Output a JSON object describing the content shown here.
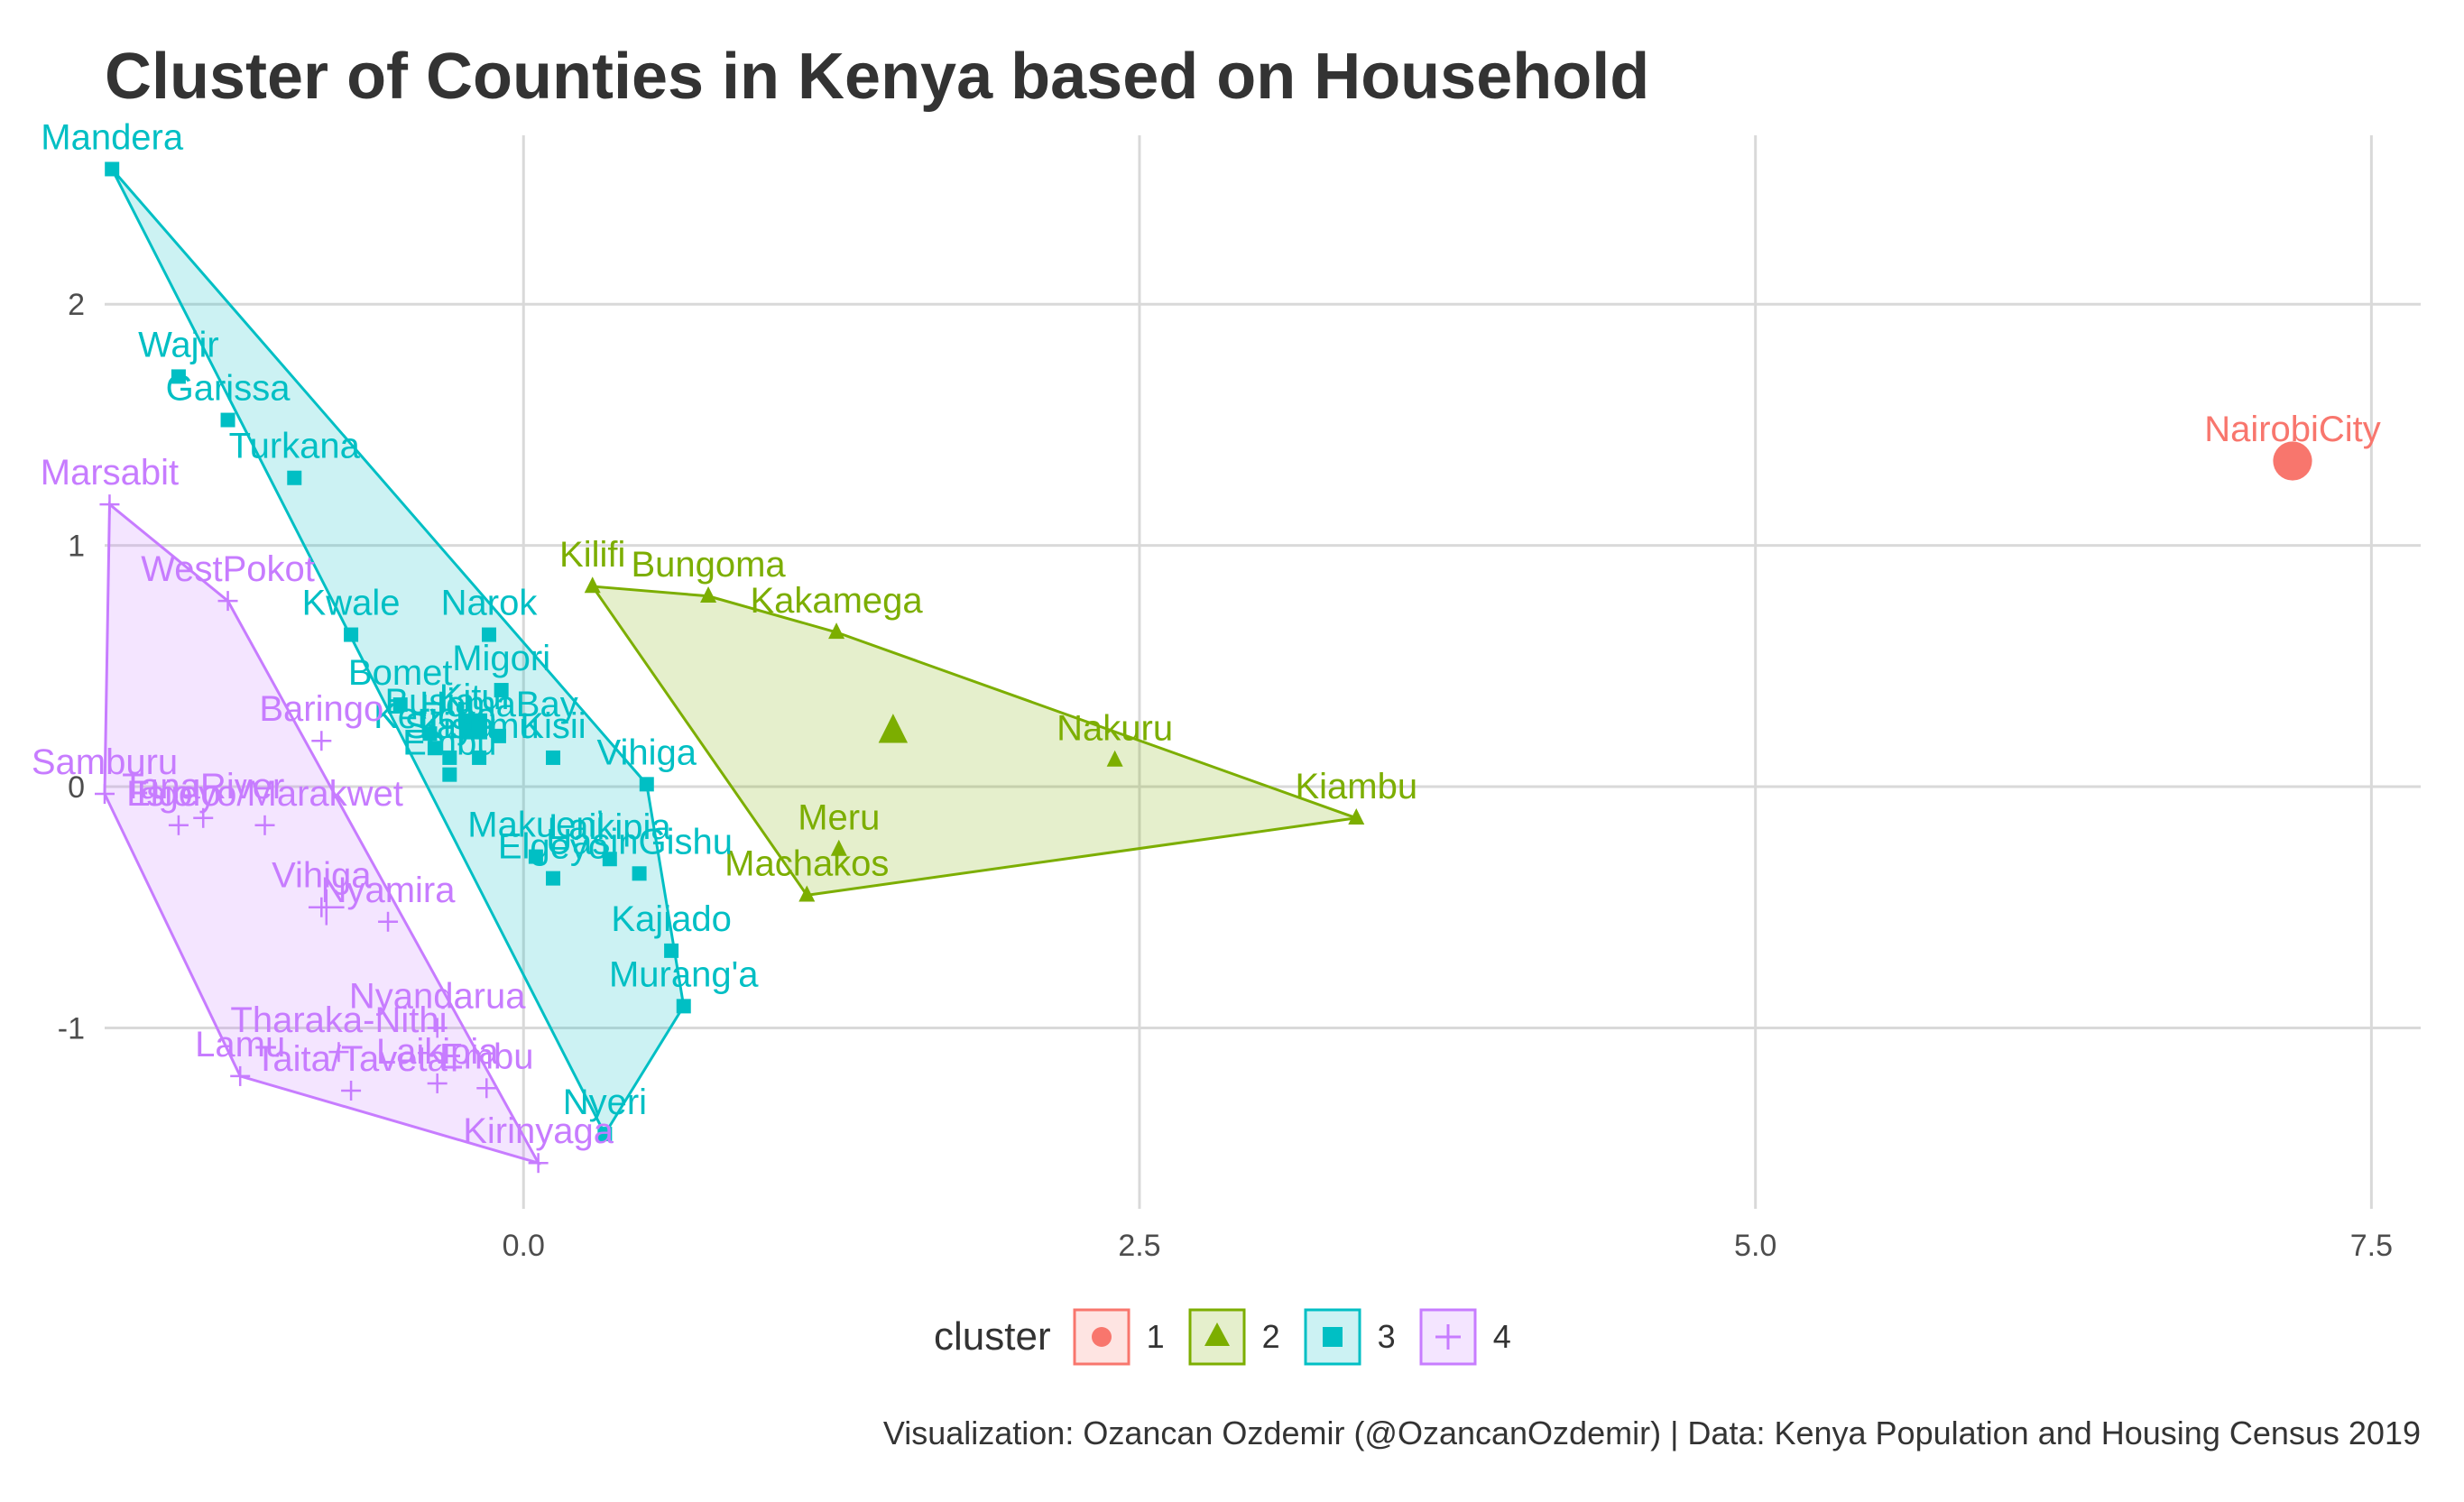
{
  "title": "Cluster of Counties in Kenya based on Household",
  "caption": "Visualization: Ozancan Ozdemir (@OzancanOzdemir) | Data: Kenya Population and Housing Census 2019",
  "colors": {
    "1": "#F8766D",
    "2": "#7CAE00",
    "3": "#00BFC4",
    "4": "#C77CFF",
    "grid": "#d9d9d9"
  },
  "legend": {
    "title": "cluster",
    "items": [
      "1",
      "2",
      "3",
      "4"
    ]
  },
  "chart_data": {
    "type": "scatter",
    "xlim": [
      -1.7,
      7.7
    ],
    "ylim": [
      -1.75,
      2.7
    ],
    "x_ticks": [
      0.0,
      2.5,
      5.0,
      7.5
    ],
    "x_tick_labels": [
      "0.0",
      "2.5",
      "5.0",
      "7.5"
    ],
    "y_ticks": [
      -1,
      0,
      1,
      2
    ],
    "y_tick_labels": [
      "-1",
      "0",
      "1",
      "2"
    ],
    "grid": true,
    "legend_position": "bottom",
    "centroids": [
      {
        "cluster": "1",
        "x": 7.18,
        "y": 1.35
      },
      {
        "cluster": "2",
        "x": 1.5,
        "y": 0.23
      },
      {
        "cluster": "3",
        "x": -0.2,
        "y": 0.25
      },
      {
        "cluster": "4",
        "x": -0.8,
        "y": -0.5
      }
    ],
    "series": [
      {
        "name": "1",
        "points": [
          {
            "label": "NairobiCity",
            "x": 7.18,
            "y": 1.35
          }
        ]
      },
      {
        "name": "2",
        "points": [
          {
            "label": "Kilifi",
            "x": 0.28,
            "y": 0.83
          },
          {
            "label": "Bungoma",
            "x": 0.75,
            "y": 0.79
          },
          {
            "label": "Kakamega",
            "x": 1.27,
            "y": 0.64
          },
          {
            "label": "Nakuru",
            "x": 2.4,
            "y": 0.11
          },
          {
            "label": "Kiambu",
            "x": 3.38,
            "y": -0.13
          },
          {
            "label": "Meru",
            "x": 1.28,
            "y": -0.26
          },
          {
            "label": "Machakos",
            "x": 1.15,
            "y": -0.45
          }
        ]
      },
      {
        "name": "3",
        "points": [
          {
            "label": "Mandera",
            "x": -1.67,
            "y": 2.56
          },
          {
            "label": "Wajir",
            "x": -1.4,
            "y": 1.7
          },
          {
            "label": "Garissa",
            "x": -1.2,
            "y": 1.52
          },
          {
            "label": "Turkana",
            "x": -0.93,
            "y": 1.28
          },
          {
            "label": "Kwale",
            "x": -0.7,
            "y": 0.63
          },
          {
            "label": "Narok",
            "x": -0.14,
            "y": 0.63
          },
          {
            "label": "Migori",
            "x": -0.09,
            "y": 0.4
          },
          {
            "label": "Bomet",
            "x": -0.5,
            "y": 0.34
          },
          {
            "label": "Busia",
            "x": -0.38,
            "y": 0.22
          },
          {
            "label": "Kitui",
            "x": -0.2,
            "y": 0.24
          },
          {
            "label": "HomaBay",
            "x": -0.1,
            "y": 0.21
          },
          {
            "label": "Kericho",
            "x": -0.36,
            "y": 0.16
          },
          {
            "label": "Siaya",
            "x": -0.3,
            "y": 0.12
          },
          {
            "label": "Kisumu",
            "x": -0.18,
            "y": 0.12
          },
          {
            "label": "Kisii",
            "x": 0.12,
            "y": 0.12
          },
          {
            "label": "Embu",
            "x": -0.3,
            "y": 0.05
          },
          {
            "label": "Makueni",
            "x": 0.05,
            "y": -0.29
          },
          {
            "label": "Laikipia",
            "x": 0.35,
            "y": -0.3
          },
          {
            "label": "UasinGishu",
            "x": 0.47,
            "y": -0.36
          },
          {
            "label": "Vihiga",
            "x": 0.5,
            "y": 0.01
          },
          {
            "label": "Elgeyo",
            "x": 0.12,
            "y": -0.38
          },
          {
            "label": "Kajiado",
            "x": 0.6,
            "y": -0.68
          },
          {
            "label": "Murang'a",
            "x": 0.65,
            "y": -0.91
          },
          {
            "label": "Nyeri",
            "x": 0.33,
            "y": -1.44
          }
        ]
      },
      {
        "name": "4",
        "points": [
          {
            "label": "Marsabit",
            "x": -1.68,
            "y": 1.17
          },
          {
            "label": "WestPokot",
            "x": -1.2,
            "y": 0.77
          },
          {
            "label": "Baringo",
            "x": -0.82,
            "y": 0.19
          },
          {
            "label": "Samburu",
            "x": -1.7,
            "y": -0.03
          },
          {
            "label": "Isiolo",
            "x": -1.4,
            "y": -0.16
          },
          {
            "label": "Elgeyo/Marakwet",
            "x": -1.05,
            "y": -0.16
          },
          {
            "label": "TanaRiver",
            "x": -1.3,
            "y": -0.13
          },
          {
            "label": "Vihiga",
            "x": -0.82,
            "y": -0.5
          },
          {
            "label": "Nyamira",
            "x": -0.55,
            "y": -0.56
          },
          {
            "label": "Tharaka-Nithi",
            "x": -0.75,
            "y": -1.1
          },
          {
            "label": "Nyandarua",
            "x": -0.35,
            "y": -1.0
          },
          {
            "label": "Lamu",
            "x": -1.15,
            "y": -1.2
          },
          {
            "label": "Taita/Taveta",
            "x": -0.7,
            "y": -1.26
          },
          {
            "label": "Laikipia",
            "x": -0.35,
            "y": -1.23
          },
          {
            "label": "Embu",
            "x": -0.15,
            "y": -1.25
          },
          {
            "label": "Kirinyaga",
            "x": 0.06,
            "y": -1.56
          }
        ]
      }
    ],
    "hulls": {
      "2": [
        "Kilifi",
        "Bungoma",
        "Kakamega",
        "Kiambu",
        "Machakos"
      ],
      "3": [
        "Mandera",
        "Vihiga",
        "Murang'a",
        "Nyeri"
      ],
      "4": [
        "Marsabit",
        "WestPokot",
        "Kirinyaga",
        "Lamu",
        "Samburu"
      ]
    }
  }
}
